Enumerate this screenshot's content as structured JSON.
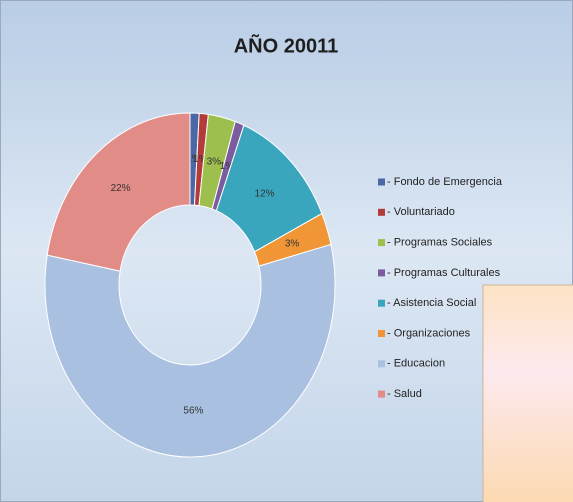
{
  "chart_data": {
    "type": "donut",
    "title": "AÑO 20011",
    "categories": [
      "- Fondo de Emergencia",
      "- Voluntariado",
      "- Programas Sociales",
      "- Programas Culturales",
      "- Asistencia Social",
      "- Organizaciones",
      "- Educacion",
      "- Salud"
    ],
    "values": [
      1,
      1,
      3,
      1,
      12,
      3,
      56,
      22
    ],
    "value_labels": [
      "1%",
      "1%",
      "3%",
      "1%",
      "12%",
      "3%",
      "56%",
      "22%"
    ],
    "colors": [
      "#4a68a6",
      "#b33c3a",
      "#9cbf4e",
      "#7b5c9f",
      "#3aa6be",
      "#f09636",
      "#a9c0e0",
      "#e28c88"
    ],
    "legend": "right"
  }
}
